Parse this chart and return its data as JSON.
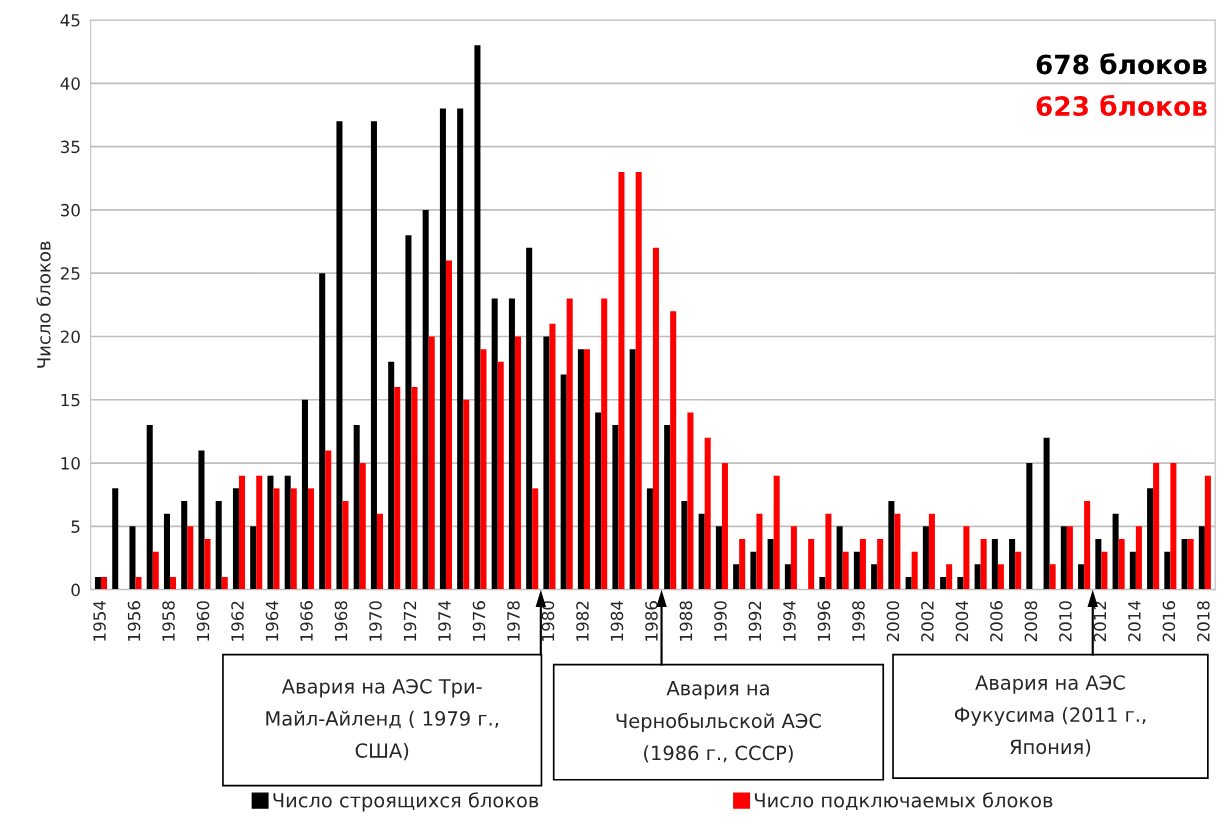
{
  "chart_data": {
    "type": "bar",
    "categories": [
      "1954",
      null,
      "1956",
      null,
      "1958",
      null,
      "1960",
      null,
      "1962",
      null,
      "1964",
      null,
      "1966",
      null,
      "1968",
      null,
      "1970",
      null,
      "1972",
      null,
      "1974",
      null,
      "1976",
      null,
      "1978",
      null,
      "1980",
      null,
      "1982",
      null,
      "1984",
      null,
      "1986",
      null,
      "1988",
      null,
      "1990",
      null,
      "1992",
      null,
      "1994",
      null,
      "1996",
      null,
      "1998",
      null,
      "2000",
      null,
      "2002",
      null,
      "2004",
      null,
      "2006",
      null,
      "2008",
      null,
      "2010",
      null,
      "2012",
      null,
      "2014",
      null,
      "2016",
      null,
      "2018"
    ],
    "series": [
      {
        "name": "Число строящихся блоков",
        "color": "#000000",
        "values": [
          1,
          8,
          5,
          13,
          6,
          7,
          11,
          7,
          8,
          5,
          9,
          9,
          15,
          25,
          37,
          13,
          37,
          18,
          28,
          30,
          38,
          38,
          43,
          23,
          23,
          27,
          20,
          17,
          19,
          14,
          13,
          19,
          8,
          13,
          7,
          6,
          5,
          2,
          3,
          4,
          2,
          0,
          1,
          5,
          3,
          2,
          7,
          1,
          5,
          1,
          1,
          2,
          4,
          4,
          10,
          12,
          5,
          2,
          4,
          6,
          3,
          8,
          3,
          4,
          5
        ]
      },
      {
        "name": "Число подключаемых блоков",
        "color": "#ff0000",
        "values": [
          1,
          0,
          1,
          3,
          1,
          5,
          4,
          1,
          9,
          9,
          8,
          8,
          8,
          11,
          7,
          10,
          6,
          16,
          16,
          20,
          26,
          15,
          19,
          18,
          20,
          8,
          21,
          23,
          19,
          23,
          33,
          33,
          27,
          22,
          14,
          12,
          10,
          4,
          6,
          9,
          5,
          4,
          6,
          3,
          4,
          4,
          6,
          3,
          6,
          2,
          5,
          4,
          2,
          3,
          0,
          2,
          5,
          7,
          3,
          4,
          5,
          10,
          10,
          4,
          9
        ]
      }
    ],
    "ylabel": "Число блоков",
    "ylim": [
      0,
      45
    ],
    "yticks": [
      0,
      5,
      10,
      15,
      20,
      25,
      30,
      35,
      40,
      45
    ],
    "grid": "y",
    "legend": "bottom",
    "annotations": [
      "678 блоков",
      "623 блоков",
      "Авария на АЭС Три-\nМайл-Айленд ( 1979 г.,\nСША)",
      "Авария на\nЧернобыльской АЭС\n(1986 г., СССР)",
      "Авария на АЭС\nФукусима (2011 г.,\nЯпония)"
    ]
  }
}
